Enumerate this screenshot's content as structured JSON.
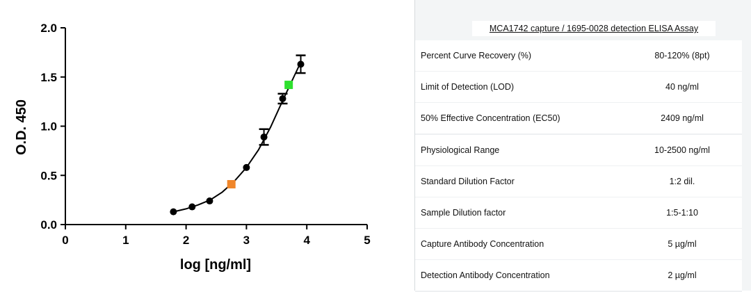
{
  "chart_data": {
    "type": "scatter",
    "xlabel": "log [ng/ml]",
    "ylabel": "O.D. 450",
    "xlim": [
      0,
      5
    ],
    "ylim": [
      0,
      2.0
    ],
    "x_ticks": [
      "0",
      "1",
      "2",
      "3",
      "4",
      "5"
    ],
    "y_ticks": [
      "0.0",
      "0.5",
      "1.0",
      "1.5",
      "2.0"
    ],
    "grid": false,
    "series": [
      {
        "kind": "points",
        "color": "#000000",
        "x": [
          1.79,
          2.1,
          2.39,
          3.0,
          3.29,
          3.6,
          3.9
        ],
        "y": [
          0.13,
          0.18,
          0.24,
          0.58,
          0.89,
          1.28,
          1.63
        ],
        "error": [
          0,
          0,
          0,
          0,
          0.08,
          0.05,
          0.09
        ]
      },
      {
        "kind": "fit-curve",
        "color": "#000000",
        "x": [
          1.79,
          2.0,
          2.2,
          2.4,
          2.6,
          2.8,
          3.0,
          3.2,
          3.4,
          3.6,
          3.9
        ],
        "y": [
          0.13,
          0.16,
          0.2,
          0.25,
          0.33,
          0.44,
          0.58,
          0.76,
          0.99,
          1.26,
          1.65
        ]
      },
      {
        "kind": "marker",
        "color": "#f0862a",
        "x": [
          2.75
        ],
        "y": [
          0.41
        ]
      },
      {
        "kind": "marker",
        "color": "#2ee02e",
        "x": [
          3.7
        ],
        "y": [
          1.42
        ]
      }
    ]
  },
  "table": {
    "title": "MCA1742 capture / 1695-0028 detection ELISA Assay",
    "rows": [
      {
        "parameter": "Percent Curve Recovery (%)",
        "value": "80-120% (8pt)"
      },
      {
        "parameter": "Limit of Detection (LOD)",
        "value": "40 ng/ml"
      },
      {
        "parameter": "50% Effective Concentration (EC50)",
        "value": "2409 ng/ml"
      },
      {
        "parameter": "Physiological Range",
        "value": "10-2500 ng/ml"
      },
      {
        "parameter": "Standard Dilution Factor",
        "value": "1:2 dil."
      },
      {
        "parameter": "Sample Dilution factor",
        "value": "1:5-1:10"
      },
      {
        "parameter": "Capture Antibody Concentration",
        "value": "5 µg/ml"
      },
      {
        "parameter": "Detection Antibody Concentration",
        "value": "2 µg/ml"
      }
    ]
  }
}
